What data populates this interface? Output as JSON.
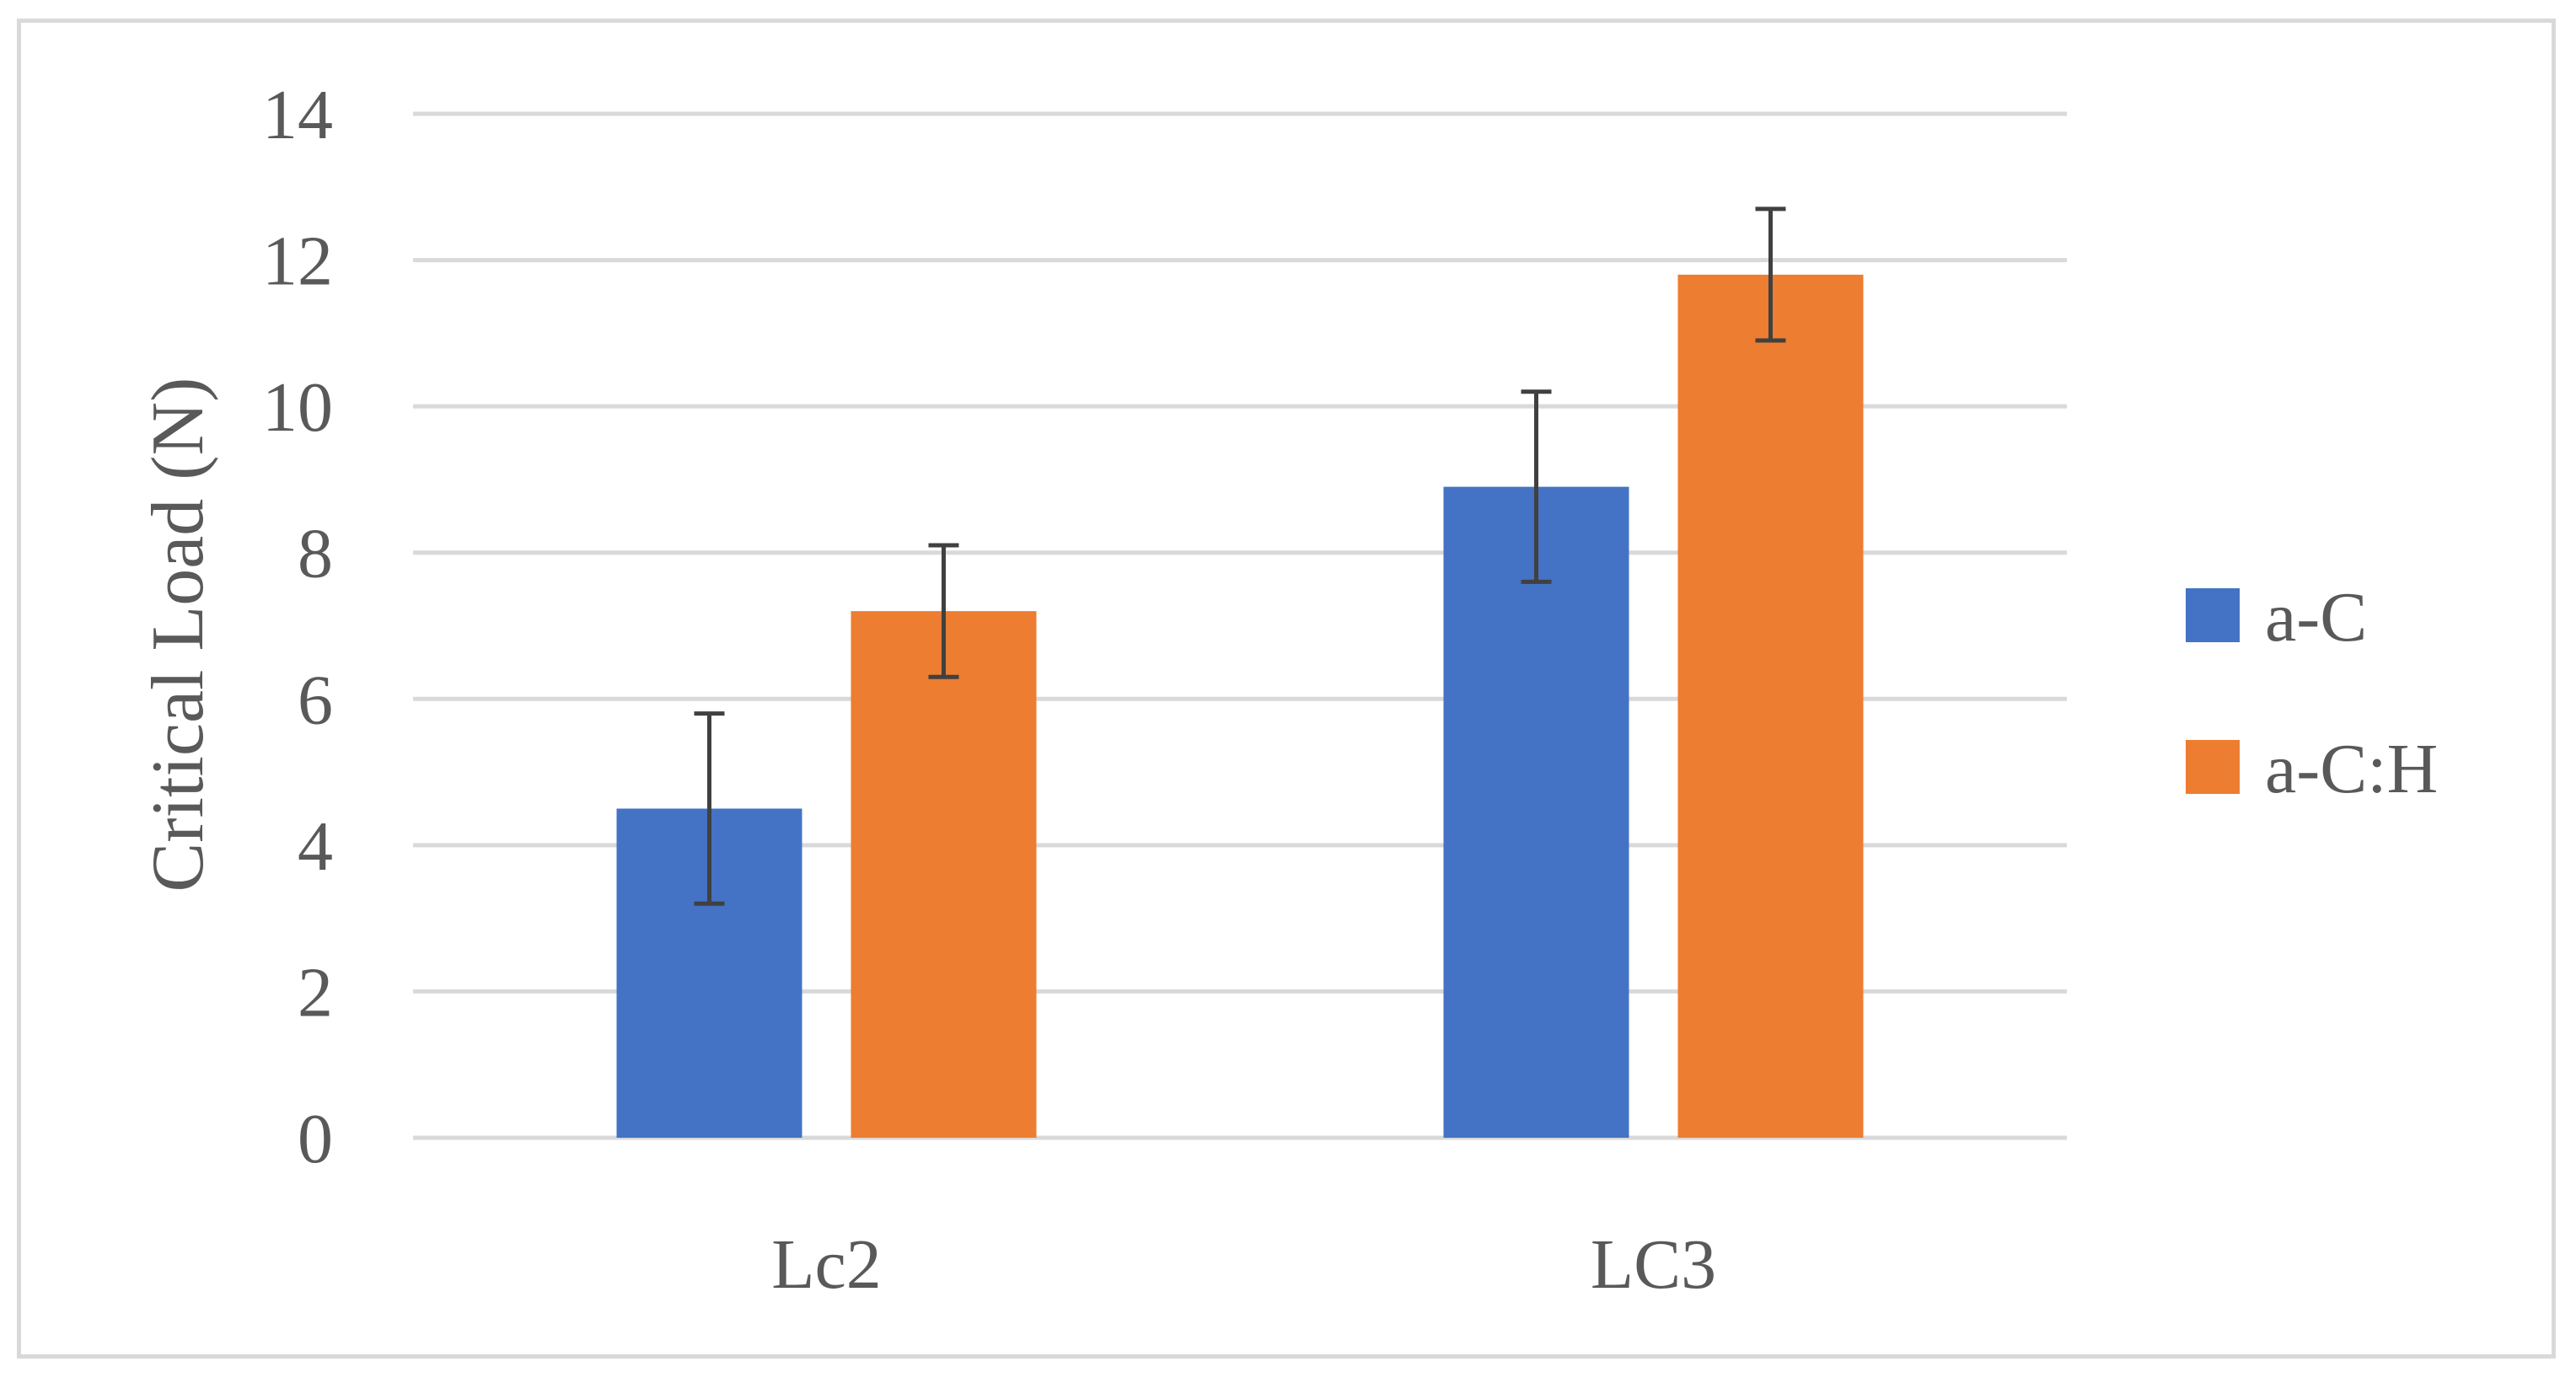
{
  "chart_data": {
    "type": "bar",
    "title": "",
    "xlabel": "",
    "ylabel": "Critical Load (N)",
    "categories": [
      "Lc2",
      "LC3"
    ],
    "series": [
      {
        "name": "a-C",
        "color": "#4472c4",
        "values": [
          4.5,
          8.9
        ],
        "error": [
          1.3,
          1.3
        ]
      },
      {
        "name": "a-C:H",
        "color": "#ed7d31",
        "values": [
          7.2,
          11.8
        ],
        "error": [
          0.9,
          0.9
        ]
      }
    ],
    "ylim": [
      0,
      14
    ],
    "yticks": [
      "0",
      "2",
      "4",
      "6",
      "8",
      "10",
      "12",
      "14"
    ],
    "grid": true,
    "legend_position": "right",
    "gridline_color": "#d9d9d9",
    "errorbar_color": "#404040"
  }
}
